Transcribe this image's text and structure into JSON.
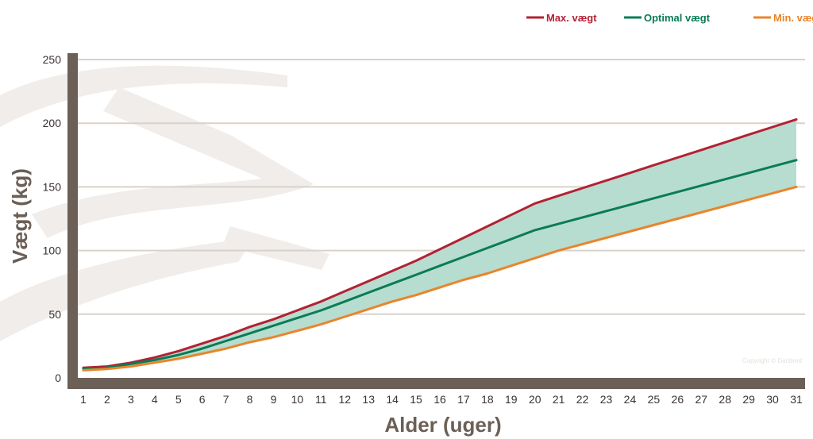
{
  "chart_data": {
    "type": "line",
    "xlabel": "Alder (uger)",
    "ylabel": "Vægt (kg)",
    "x": [
      1,
      2,
      3,
      4,
      5,
      6,
      7,
      8,
      9,
      10,
      11,
      12,
      13,
      14,
      15,
      16,
      17,
      18,
      19,
      20,
      21,
      22,
      23,
      24,
      25,
      26,
      27,
      28,
      29,
      30,
      31
    ],
    "yticks": [
      0,
      50,
      100,
      150,
      200,
      250
    ],
    "xlim": [
      1,
      31
    ],
    "ylim": [
      0,
      250
    ],
    "grid": "horizontal",
    "legend_position": "top-right",
    "band_between": [
      "Max. vægt",
      "Min. vægt"
    ],
    "band_color": "#b7dcd0",
    "series": [
      {
        "name": "Max. vægt",
        "color": "#b32134",
        "values": [
          8,
          9,
          12,
          16,
          21,
          27,
          33,
          40,
          46,
          53,
          60,
          68,
          76,
          84,
          92,
          101,
          110,
          119,
          128,
          137,
          143,
          149,
          155,
          161,
          167,
          173,
          179,
          185,
          191,
          197,
          203
        ]
      },
      {
        "name": "Optimal vægt",
        "color": "#0a7c55",
        "values": [
          7,
          8,
          11,
          14,
          18,
          23,
          29,
          35,
          41,
          47,
          53,
          60,
          67,
          74,
          81,
          88,
          95,
          102,
          109,
          116,
          121,
          126,
          131,
          136,
          141,
          146,
          151,
          156,
          161,
          166,
          171
        ]
      },
      {
        "name": "Min. vægt",
        "color": "#e8852b",
        "values": [
          6,
          7,
          9,
          12,
          15,
          19,
          23,
          28,
          32,
          37,
          42,
          48,
          54,
          60,
          65,
          71,
          77,
          82,
          88,
          94,
          100,
          105,
          110,
          115,
          120,
          125,
          130,
          135,
          140,
          145,
          150
        ]
      }
    ]
  },
  "watermark": {
    "text": "Copyright © Danbred"
  },
  "colors": {
    "axis": "#6b5f56",
    "grid": "#d9d2cb",
    "watermark": "#f0edea"
  }
}
